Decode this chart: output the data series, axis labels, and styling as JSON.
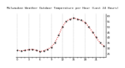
{
  "title": "Milwaukee Weather Outdoor Temperature per Hour (Last 24 Hours)",
  "hours": [
    0,
    1,
    2,
    3,
    4,
    5,
    6,
    7,
    8,
    9,
    10,
    11,
    12,
    13,
    14,
    15,
    16,
    17,
    18,
    19,
    20,
    21,
    22,
    23
  ],
  "temperatures": [
    28,
    27.5,
    28,
    28.5,
    29,
    28,
    27,
    27.5,
    29,
    31,
    35,
    42,
    50,
    55,
    57,
    58,
    57,
    56,
    54,
    50,
    45,
    40,
    35,
    32
  ],
  "ylim": [
    22,
    62
  ],
  "yticks": [
    25,
    30,
    35,
    40,
    45,
    50,
    55,
    60
  ],
  "ytick_labels": [
    "25",
    "30",
    "35",
    "40",
    "45",
    "50",
    "55",
    "60"
  ],
  "vgrid_positions": [
    0,
    3,
    6,
    9,
    12,
    15,
    18,
    21,
    23
  ],
  "line_color": "#cc0000",
  "dot_color": "#000000",
  "bg_color": "#ffffff",
  "grid_color": "#999999",
  "title_color": "#000000",
  "title_fontsize": 3.2,
  "tick_fontsize": 2.8,
  "linewidth": 0.8,
  "markersize": 1.2
}
